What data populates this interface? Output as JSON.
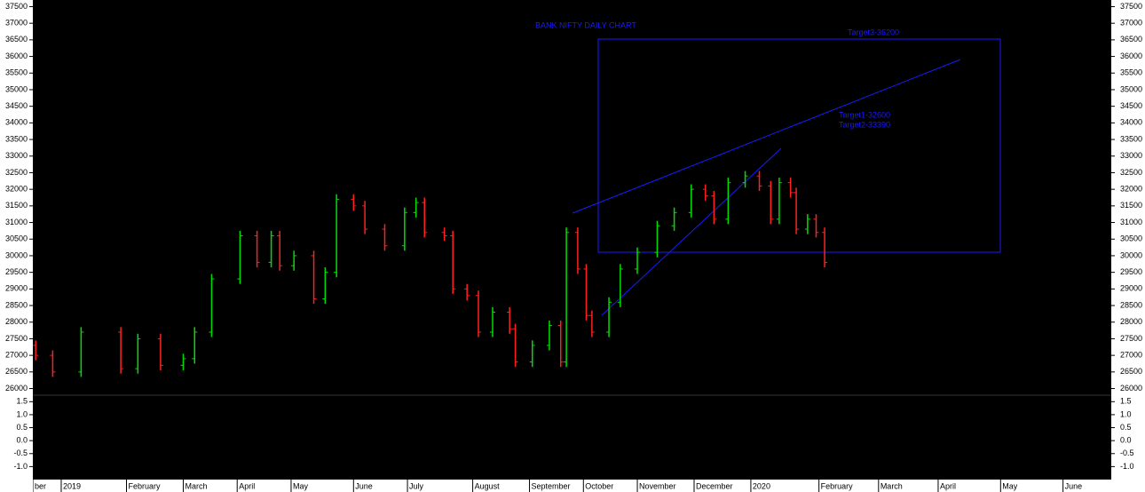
{
  "chart_data": {
    "type": "ohlc",
    "title": "BANK NIFTY DAILY CHART",
    "annotations": [
      "Target3-36200",
      "Target1-32600",
      "Target2-33390"
    ],
    "up_color": "#00dd00",
    "down_color": "#ff2020",
    "x": [
      1,
      7,
      17,
      31,
      37,
      45,
      53,
      57,
      63,
      73,
      79,
      84,
      87,
      92,
      99,
      103,
      107,
      113,
      117,
      124,
      131,
      135,
      138,
      145,
      148,
      153,
      157,
      162,
      168,
      170,
      176,
      182,
      186,
      188,
      192,
      195,
      197,
      203,
      207,
      213,
      220,
      226,
      232,
      237,
      240,
      245,
      251,
      256,
      260,
      263,
      267,
      269,
      273,
      276,
      279
    ],
    "open": [
      27300,
      27000,
      26500,
      27700,
      26600,
      27500,
      26700,
      26900,
      27700,
      29300,
      30600,
      29800,
      30600,
      29700,
      30000,
      28700,
      29500,
      31700,
      31500,
      30800,
      30300,
      31300,
      31600,
      30700,
      30600,
      29000,
      28800,
      27700,
      28300,
      27800,
      26800,
      27300,
      27900,
      26800,
      30700,
      29600,
      28200,
      27700,
      28600,
      29600,
      30100,
      30900,
      31300,
      32000,
      31800,
      31100,
      32200,
      32400,
      32100,
      31100,
      32200,
      31900,
      30800,
      31100,
      30700
    ],
    "high": [
      27450,
      27150,
      27850,
      27850,
      27650,
      27650,
      27050,
      27850,
      29450,
      30750,
      30750,
      30750,
      30750,
      30150,
      30150,
      29650,
      31850,
      31850,
      31650,
      30950,
      31450,
      31750,
      31750,
      30850,
      30750,
      29150,
      28950,
      28450,
      28450,
      27950,
      27450,
      28050,
      28050,
      30850,
      30850,
      29750,
      28350,
      28750,
      29750,
      30250,
      31050,
      31450,
      32150,
      32150,
      31950,
      32350,
      32550,
      32550,
      32250,
      32350,
      32350,
      32050,
      31250,
      31250,
      30850
    ],
    "low": [
      26850,
      26350,
      26350,
      26450,
      26450,
      26550,
      26550,
      26750,
      27550,
      29150,
      29650,
      29650,
      29550,
      29550,
      28550,
      28550,
      29350,
      31350,
      30650,
      30150,
      30150,
      31150,
      30550,
      30450,
      28850,
      28650,
      27550,
      27550,
      27650,
      26650,
      26650,
      27150,
      26650,
      26650,
      29450,
      28050,
      27550,
      27550,
      28450,
      29450,
      29950,
      30750,
      31150,
      31650,
      30950,
      30950,
      32050,
      31950,
      30950,
      30950,
      31750,
      30650,
      30650,
      30550,
      29650
    ],
    "close": [
      27000,
      26500,
      27700,
      26600,
      27500,
      26700,
      26900,
      27700,
      29300,
      30600,
      29800,
      30600,
      29700,
      30000,
      28700,
      29500,
      31700,
      31500,
      30800,
      30300,
      31300,
      31600,
      30700,
      30600,
      29000,
      28800,
      27700,
      28300,
      27800,
      26800,
      27300,
      27900,
      26800,
      30700,
      29600,
      28200,
      27700,
      28600,
      29600,
      30100,
      30900,
      31300,
      32000,
      31800,
      31100,
      32200,
      32400,
      32100,
      31100,
      32200,
      31900,
      30800,
      31100,
      30700,
      29800
    ],
    "xlim": [
      0,
      380
    ],
    "xticks": [
      {
        "value": 0,
        "label": "ber"
      },
      {
        "value": 10,
        "label": "2019"
      },
      {
        "value": 33,
        "label": "February"
      },
      {
        "value": 53,
        "label": "March"
      },
      {
        "value": 72,
        "label": "April"
      },
      {
        "value": 91,
        "label": "May"
      },
      {
        "value": 113,
        "label": "June"
      },
      {
        "value": 132,
        "label": "July"
      },
      {
        "value": 155,
        "label": "August"
      },
      {
        "value": 175,
        "label": "September"
      },
      {
        "value": 194,
        "label": "October"
      },
      {
        "value": 213,
        "label": "November"
      },
      {
        "value": 233,
        "label": "December"
      },
      {
        "value": 253,
        "label": "2020"
      },
      {
        "value": 277,
        "label": "February"
      },
      {
        "value": 298,
        "label": "March"
      },
      {
        "value": 319,
        "label": "April"
      },
      {
        "value": 341,
        "label": "May"
      },
      {
        "value": 363,
        "label": "June"
      }
    ],
    "ylim": [
      25800,
      37700
    ],
    "yticks": [
      26000,
      26500,
      27000,
      27500,
      28000,
      28500,
      29000,
      29500,
      30000,
      30500,
      31000,
      31500,
      32000,
      32500,
      33000,
      33500,
      34000,
      34500,
      35000,
      35500,
      36000,
      36500,
      37000,
      37500
    ],
    "y2lim": [
      -1.5,
      1.75
    ],
    "y2ticks": [
      1.5,
      {
        "value": 1,
        "label": "1.0"
      },
      0.5,
      {
        "value": 0,
        "label": "0.0"
      },
      -0.5,
      {
        "value": -1,
        "label": "-1.0"
      }
    ]
  }
}
